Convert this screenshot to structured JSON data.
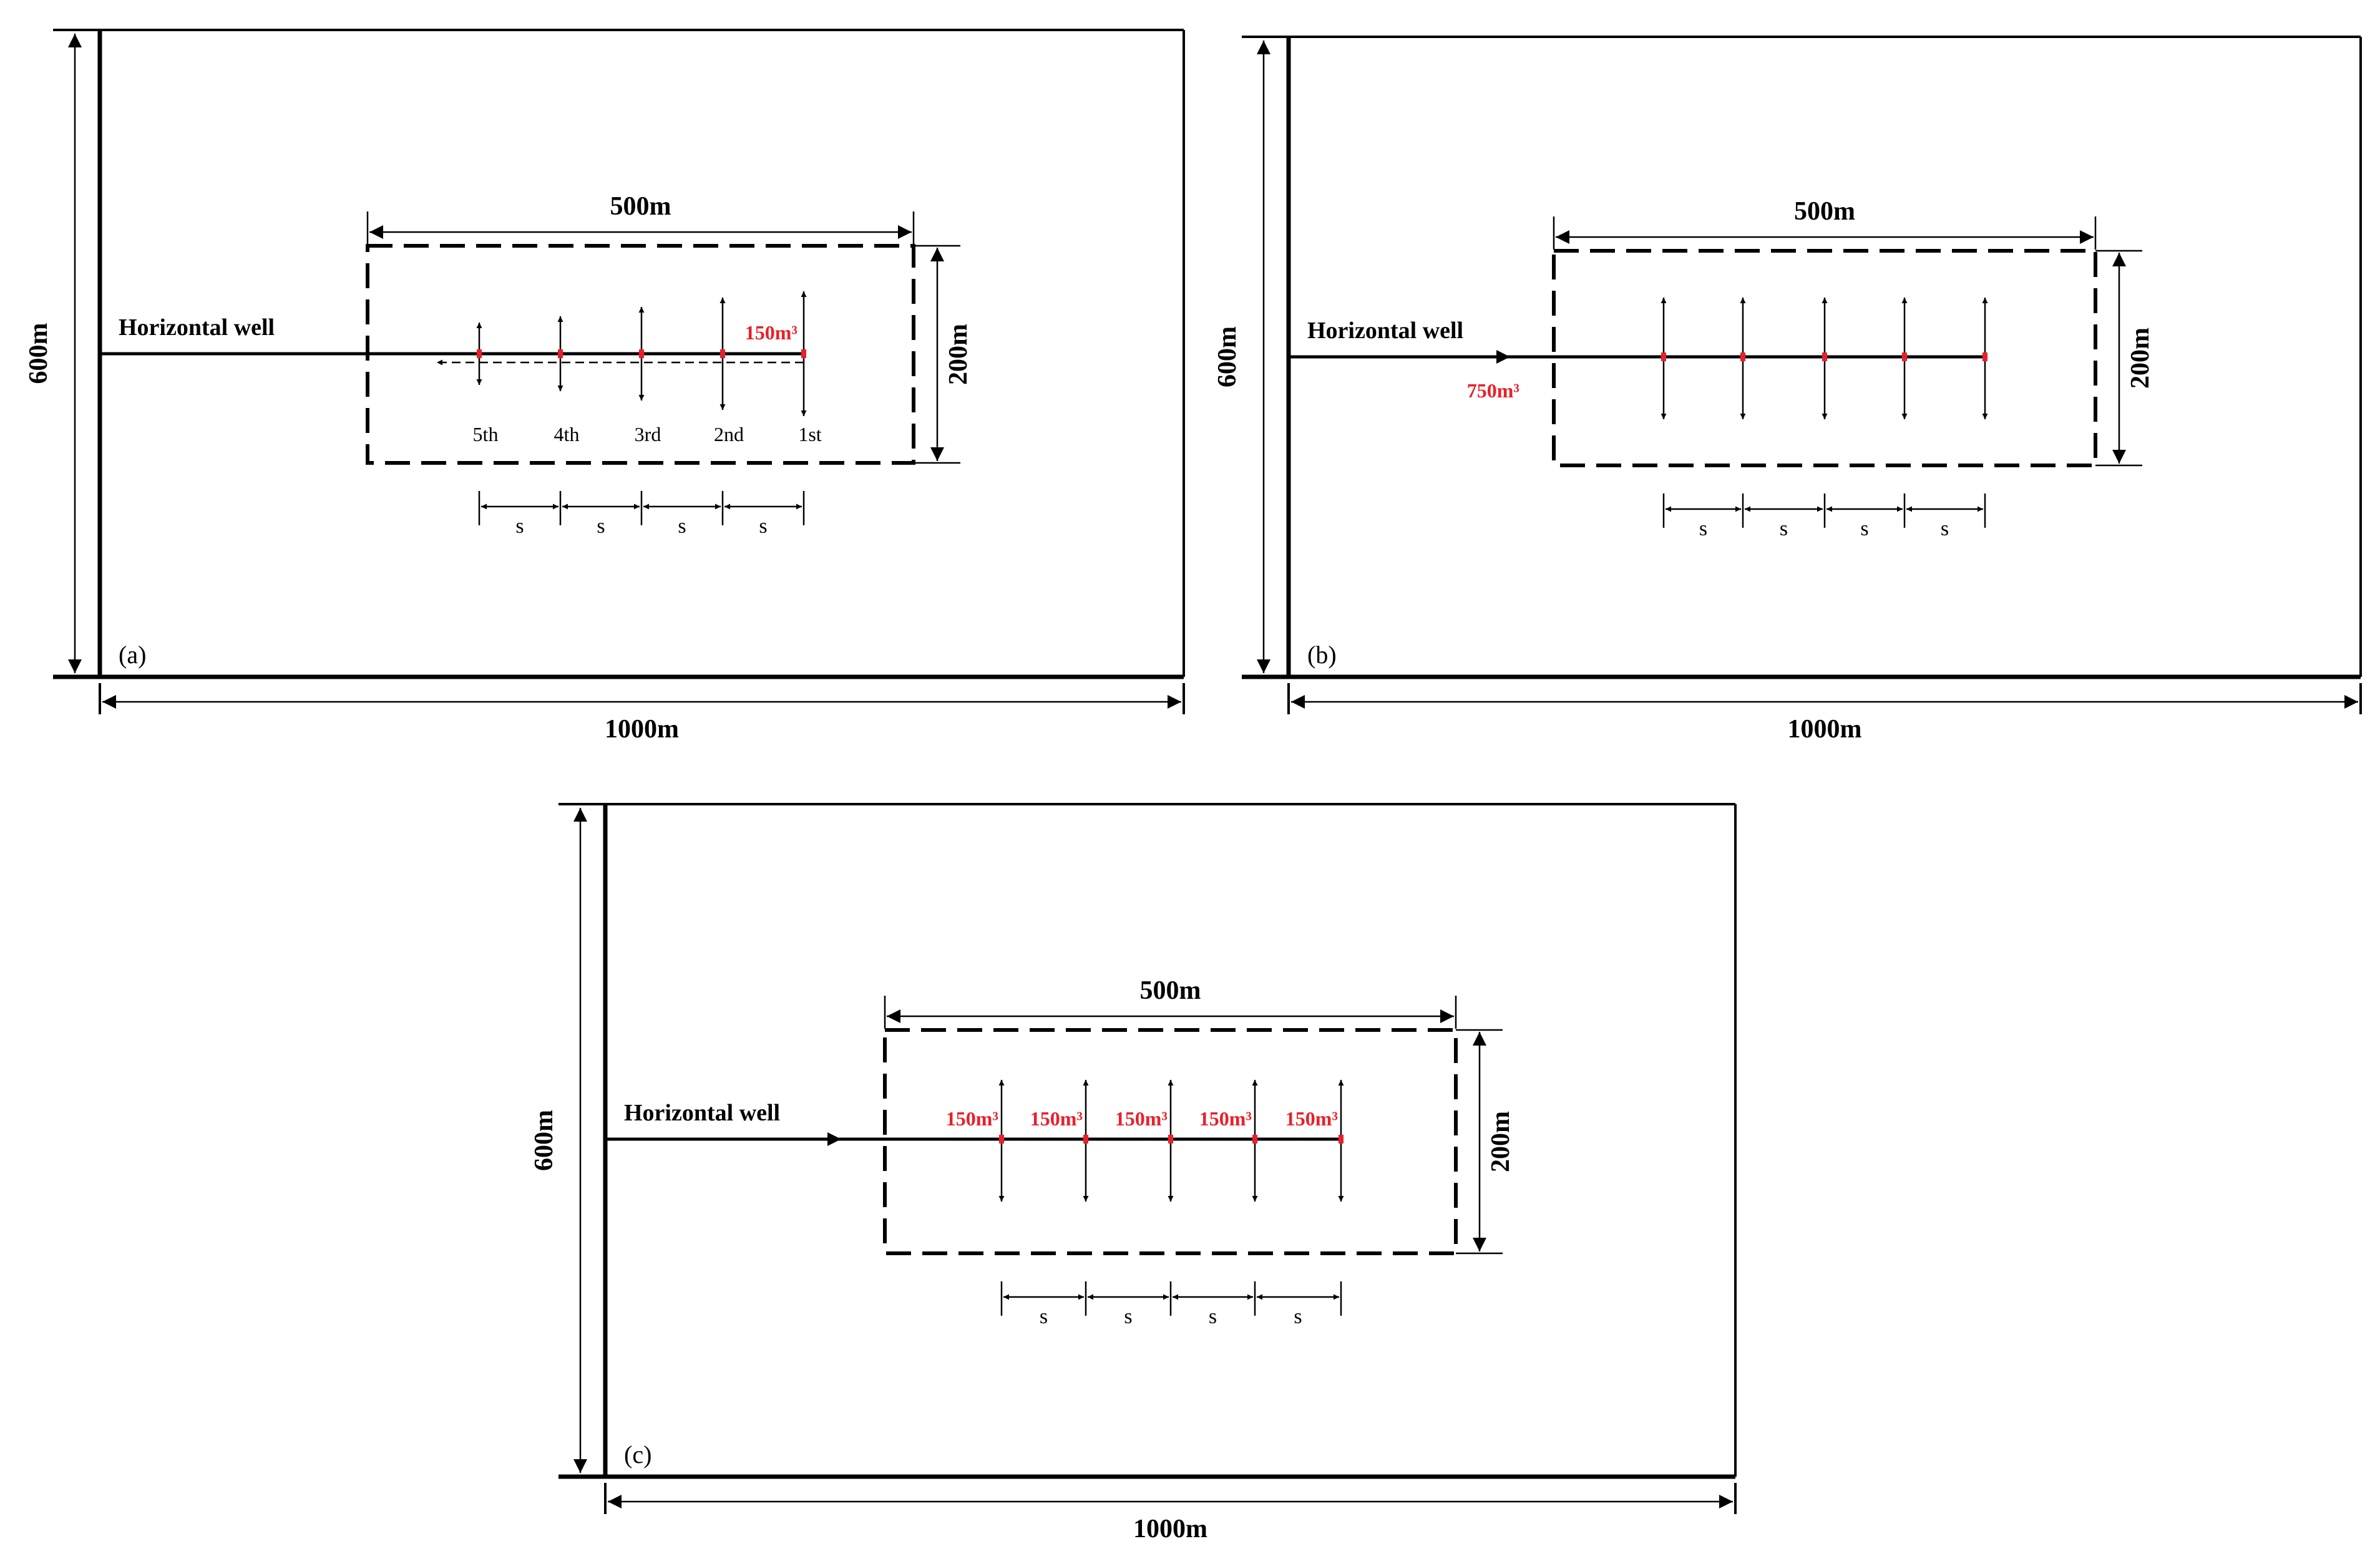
{
  "panels": {
    "a": {
      "label": "(a)",
      "well_label": "Horizontal well",
      "width_label": "1000m",
      "height_label": "600m",
      "zone_width_label": "500m",
      "zone_height_label": "200m",
      "stage_labels": [
        "5th",
        "4th",
        "3rd",
        "2nd",
        "1st"
      ],
      "spacing_labels": [
        "s",
        "s",
        "s",
        "s"
      ],
      "volume_label": "150m³"
    },
    "b": {
      "label": "(b)",
      "well_label": "Horizontal well",
      "width_label": "1000m",
      "height_label": "600m",
      "zone_width_label": "500m",
      "zone_height_label": "200m",
      "spacing_labels": [
        "s",
        "s",
        "s",
        "s"
      ],
      "volume_label": "750m³"
    },
    "c": {
      "label": "(c)",
      "well_label": "Horizontal well",
      "width_label": "1000m",
      "height_label": "600m",
      "zone_width_label": "500m",
      "zone_height_label": "200m",
      "spacing_labels": [
        "s",
        "s",
        "s",
        "s"
      ],
      "volume_labels": [
        "150m³",
        "150m³",
        "150m³",
        "150m³",
        "150m³"
      ]
    }
  },
  "colors": {
    "line": "#000000",
    "highlight": "#e8202a",
    "arrow_gray": "#333333"
  }
}
